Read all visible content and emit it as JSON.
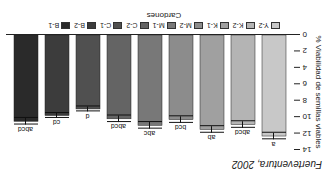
{
  "chart_data": {
    "type": "bar",
    "title": "Fuerteventura, 2002",
    "y_label": "% Viabilidad de semillas viables",
    "categories": [
      "Y-2",
      "K-2",
      "K-1",
      "M-2",
      "M-1",
      "C-2",
      "C-1",
      "B-2",
      "B-1"
    ],
    "values": [
      12.3,
      10.9,
      11.5,
      10.3,
      11.0,
      10.2,
      9.0,
      9.8,
      10.5
    ],
    "errors": [
      0.4,
      0.4,
      0.4,
      0.4,
      0.4,
      0.4,
      0.3,
      0.3,
      0.4
    ],
    "letters": [
      "a",
      "abcd",
      "ab",
      "bcd",
      "abc",
      "abcd",
      "d",
      "cd",
      "abcd"
    ],
    "colors": [
      "#c8c8c8",
      "#b4b4b4",
      "#a0a0a0",
      "#8c8c8c",
      "#787878",
      "#646464",
      "#505050",
      "#3c3c3c",
      "#2a2a2a"
    ],
    "ylim": [
      0,
      14
    ],
    "yticks": [
      0,
      2,
      4,
      6,
      8,
      10,
      12,
      14
    ],
    "grid": false,
    "tick_labels": "y",
    "legend": "bottom",
    "legend_title": "Cardones"
  }
}
